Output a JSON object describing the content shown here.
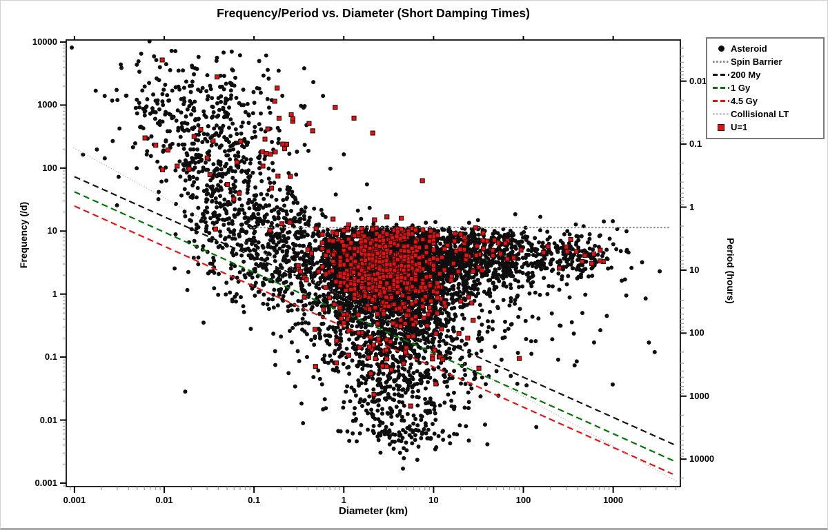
{
  "window": {
    "background": "#ffffff",
    "border_color": "#a9a9a9"
  },
  "chart_data": {
    "type": "scatter",
    "title": "Frequency/Period vs. Diameter (Short Damping Times)",
    "seed": 1337,
    "grid": false,
    "legend_position": "top-right-outside",
    "x_axis": {
      "label": "Diameter (km)",
      "scale": "log",
      "min": 0.00081,
      "max": 5600,
      "ticks": [
        0.001,
        0.01,
        0.1,
        1,
        10,
        100,
        1000
      ],
      "tick_labels": [
        "0.001",
        "0.01",
        "0.1",
        "1",
        "10",
        "100",
        "1000"
      ]
    },
    "y_axis_left": {
      "label": "Frequency (/d)",
      "scale": "log",
      "min": 0.00088,
      "max": 10800,
      "ticks": [
        10000,
        1000,
        100,
        10,
        1,
        0.1,
        0.01,
        0.001
      ],
      "tick_labels": [
        "10000",
        "1000",
        "100",
        "10",
        "1",
        "0.1",
        "0.01",
        "0.001"
      ]
    },
    "y_axis_right": {
      "label": "Period (hours)",
      "scale": "log",
      "relation": "period_hours = 24 / frequency_per_day",
      "ticks": [
        0.01,
        0.1,
        1,
        10,
        100,
        1000,
        10000
      ],
      "tick_labels": [
        "0.01",
        "0.1",
        "1",
        "10",
        "100",
        "1000",
        "10000"
      ]
    },
    "colors": {
      "asteroid": "#0e0e0e",
      "u1_fill": "#ec0f0f",
      "u1_edge": "#111111",
      "spin_barrier": "#8a8a8a",
      "line_200my": "#111111",
      "line_1gy": "#007700",
      "line_45gy": "#ee1111",
      "collisional_lt": "#c9b8cb",
      "minor_tick": "#9a9a9a",
      "major_tick": "#000000"
    },
    "legend": [
      {
        "label": "Asteroid",
        "type": "circle",
        "color": "#0e0e0e"
      },
      {
        "label": "Spin Barrier",
        "type": "line",
        "line_style": "dotted",
        "color": "#8a8a8a"
      },
      {
        "label": "200 My",
        "type": "line",
        "line_style": "dashed",
        "color": "#111111"
      },
      {
        "label": "1 Gy",
        "type": "line",
        "line_style": "dashed",
        "color": "#007700"
      },
      {
        "label": "4.5 Gy",
        "type": "line",
        "line_style": "dashed",
        "color": "#ee1111"
      },
      {
        "label": "Collisional LT",
        "type": "line",
        "line_style": "dotted",
        "color": "#d3c3d6"
      },
      {
        "label": "U=1",
        "type": "square",
        "color": "#ec0f0f"
      }
    ],
    "lines": [
      {
        "name": "Spin Barrier",
        "style": "dotted",
        "dash": [
          2.5,
          2.5
        ],
        "width": 2.0,
        "color": "#8a8a8a",
        "points": [
          [
            0.09,
            11.4
          ],
          [
            4300,
            11.4
          ]
        ]
      },
      {
        "name": "200 My",
        "style": "dashed",
        "dash": [
          9,
          5.5
        ],
        "width": 2.2,
        "color": "#111111",
        "points": [
          [
            0.001,
            73
          ],
          [
            4930,
            0.004
          ]
        ]
      },
      {
        "name": "1 Gy",
        "style": "dashed",
        "dash": [
          9,
          5.5
        ],
        "width": 2.2,
        "color": "#007700",
        "points": [
          [
            0.001,
            42
          ],
          [
            4760,
            0.00224
          ]
        ]
      },
      {
        "name": "4.5 Gy",
        "style": "dashed",
        "dash": [
          9,
          5.5
        ],
        "width": 2.2,
        "color": "#ee1111",
        "points": [
          [
            0.001,
            25
          ],
          [
            4600,
            0.00139
          ]
        ]
      },
      {
        "name": "Collisional LT",
        "style": "dotted",
        "dash": [
          1.3,
          2.6
        ],
        "width": 1.1,
        "color": "#b6a6b6",
        "points": [
          [
            0.00097,
            212
          ],
          [
            5230,
            0.00105
          ]
        ]
      }
    ],
    "series": [
      {
        "name": "Asteroid",
        "marker": "circle",
        "color": "#0e0e0e",
        "size": 6,
        "clusters": [
          {
            "n": 320,
            "logD": [
              -1.6,
              0.5
            ],
            "logF": [
              2.75,
              0.6
            ]
          },
          {
            "n": 350,
            "logD": [
              -1.35,
              0.28
            ],
            "logF": [
              1.6,
              0.75
            ]
          },
          {
            "n": 420,
            "logD": [
              -0.75,
              0.33
            ],
            "logF": [
              0.75,
              0.5
            ]
          },
          {
            "n": 3000,
            "logD": [
              0.5,
              0.42
            ],
            "logF": [
              0.45,
              0.45
            ],
            "fmax": 11.4
          },
          {
            "n": 800,
            "logD": [
              0.55,
              0.5
            ],
            "logF": [
              -0.5,
              0.55
            ]
          },
          {
            "n": 280,
            "logD": [
              0.6,
              0.38
            ],
            "logF": [
              -1.45,
              0.5
            ]
          },
          {
            "n": 80,
            "logD": [
              0.7,
              0.28
            ],
            "logF": [
              -2.2,
              0.15
            ]
          },
          {
            "n": 600,
            "logD": [
              1.55,
              0.45
            ],
            "logF": [
              0.6,
              0.3
            ],
            "fmax": 11.4
          },
          {
            "n": 120,
            "logD": [
              2.6,
              0.22
            ],
            "logF": [
              0.58,
              0.22
            ]
          },
          {
            "n": 50,
            "logD": [
              1.9,
              0.55
            ],
            "logF": [
              -0.55,
              0.6
            ]
          }
        ],
        "extra_points": [
          [
            1400,
            0.95
          ],
          [
            2300,
            0.85
          ],
          [
            850,
            0.45
          ],
          [
            2500,
            0.17
          ],
          [
            2100,
            3.2
          ],
          [
            3300,
            2.3
          ],
          [
            2900,
            0.12
          ],
          [
            1600,
            2.6
          ]
        ]
      },
      {
        "name": "U=1",
        "marker": "square",
        "fill": "#ec0f0f",
        "edge": "#111111",
        "size": 7,
        "clusters": [
          {
            "n": 650,
            "logD": [
              0.45,
              0.33
            ],
            "logF": [
              0.5,
              0.4
            ],
            "fmax": 11.2,
            "snap": 0.04
          },
          {
            "n": 70,
            "logD": [
              0.55,
              0.42
            ],
            "logF": [
              -0.65,
              0.5
            ]
          },
          {
            "n": 40,
            "logD": [
              -1.05,
              0.45
            ],
            "logF": [
              2.0,
              0.65
            ]
          },
          {
            "n": 12,
            "logD": [
              2.62,
              0.18
            ],
            "logF": [
              0.62,
              0.18
            ]
          },
          {
            "n": 35,
            "logD": [
              1.5,
              0.35
            ],
            "logF": [
              0.72,
              0.22
            ],
            "fmax": 11.0
          }
        ],
        "extra_points": [
          [
            0.0095,
            5200
          ],
          [
            0.17,
            1150
          ],
          [
            0.19,
            620
          ],
          [
            0.45,
            390
          ],
          [
            2.1,
            360
          ],
          [
            7.5,
            63
          ],
          [
            0.035,
            270
          ],
          [
            90,
            0.095
          ],
          [
            24,
            0.2
          ]
        ]
      }
    ]
  }
}
